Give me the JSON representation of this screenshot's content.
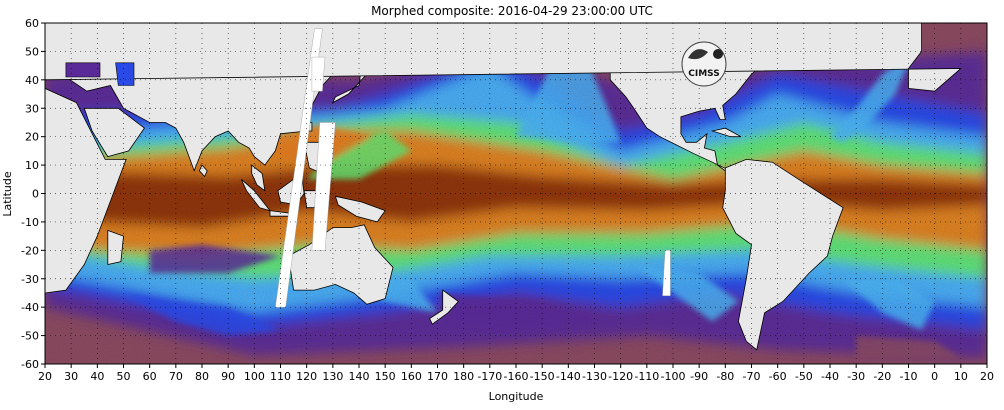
{
  "title": "Morphed composite: 2016-04-29 23:00:00 UTC",
  "logo": {
    "text": "CIMSS"
  },
  "chart_data": {
    "type": "heatmap",
    "xlabel": "Longitude",
    "ylabel": "Latitude",
    "x_ticks": [
      "20",
      "30",
      "40",
      "50",
      "60",
      "70",
      "80",
      "90",
      "100",
      "110",
      "120",
      "130",
      "140",
      "150",
      "160",
      "170",
      "180",
      "-170",
      "-160",
      "-150",
      "-140",
      "-130",
      "-120",
      "-110",
      "-100",
      "-90",
      "-80",
      "-70",
      "-60",
      "-50",
      "-40",
      "-30",
      "-20",
      "-10",
      "0",
      "10",
      "20"
    ],
    "y_ticks": [
      "60",
      "50",
      "40",
      "30",
      "20",
      "10",
      "0",
      "-10",
      "-20",
      "-30",
      "-40",
      "-50",
      "-60"
    ],
    "ylim": [
      -60,
      60
    ],
    "grid": "dotted"
  },
  "colors": {
    "very_dry": "#8a4a60",
    "dry": "#5a2a98",
    "moist": "#2a4ae8",
    "humid": "#4ab0f0",
    "wet": "#60e070",
    "very_wet": "#e07a20",
    "saturated": "#8a3208",
    "land": "#e8e8e8",
    "missing": "#ffffff"
  }
}
